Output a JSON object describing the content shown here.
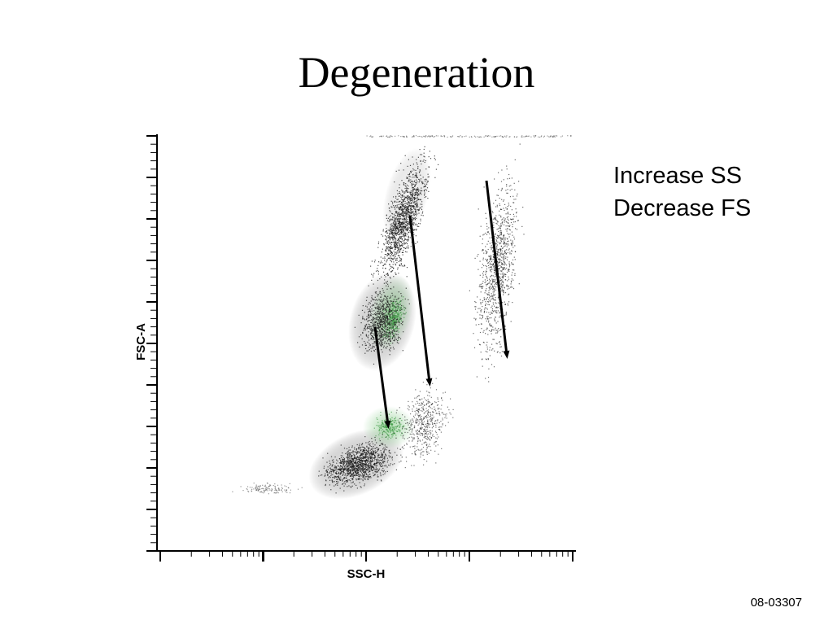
{
  "slide": {
    "title": "Degeneration",
    "annotation_lines": [
      "Increase SS",
      "Decrease FS"
    ],
    "footer_code": "08-03307"
  },
  "chart_data": {
    "type": "scatter",
    "subtype": "flow-cytometry density dot plot",
    "xlabel": "SSC-H",
    "ylabel": "FSC-A",
    "x_scale": "log",
    "y_scale": "linear",
    "tick_labels_shown": false,
    "grid": false,
    "legend": "none",
    "colors": {
      "dots": "#1a1a1a",
      "dense_core": "#b8b8b8",
      "gated_green": "#4caf50",
      "arrows": "#000000"
    },
    "populations": [
      {
        "name": "",
        "description": "main dense population extending diagonally with green-highlighted core"
      },
      {
        "name": "",
        "description": "sparse population at higher SSC"
      }
    ],
    "annotations": [
      {
        "type": "arrow",
        "direction": "down-right",
        "meaning": "increase SS, decrease FS"
      },
      {
        "type": "arrow",
        "direction": "down-right",
        "meaning": "increase SS, decrease FS"
      },
      {
        "type": "arrow",
        "direction": "down-right",
        "meaning": "increase SS, decrease FS"
      }
    ]
  }
}
